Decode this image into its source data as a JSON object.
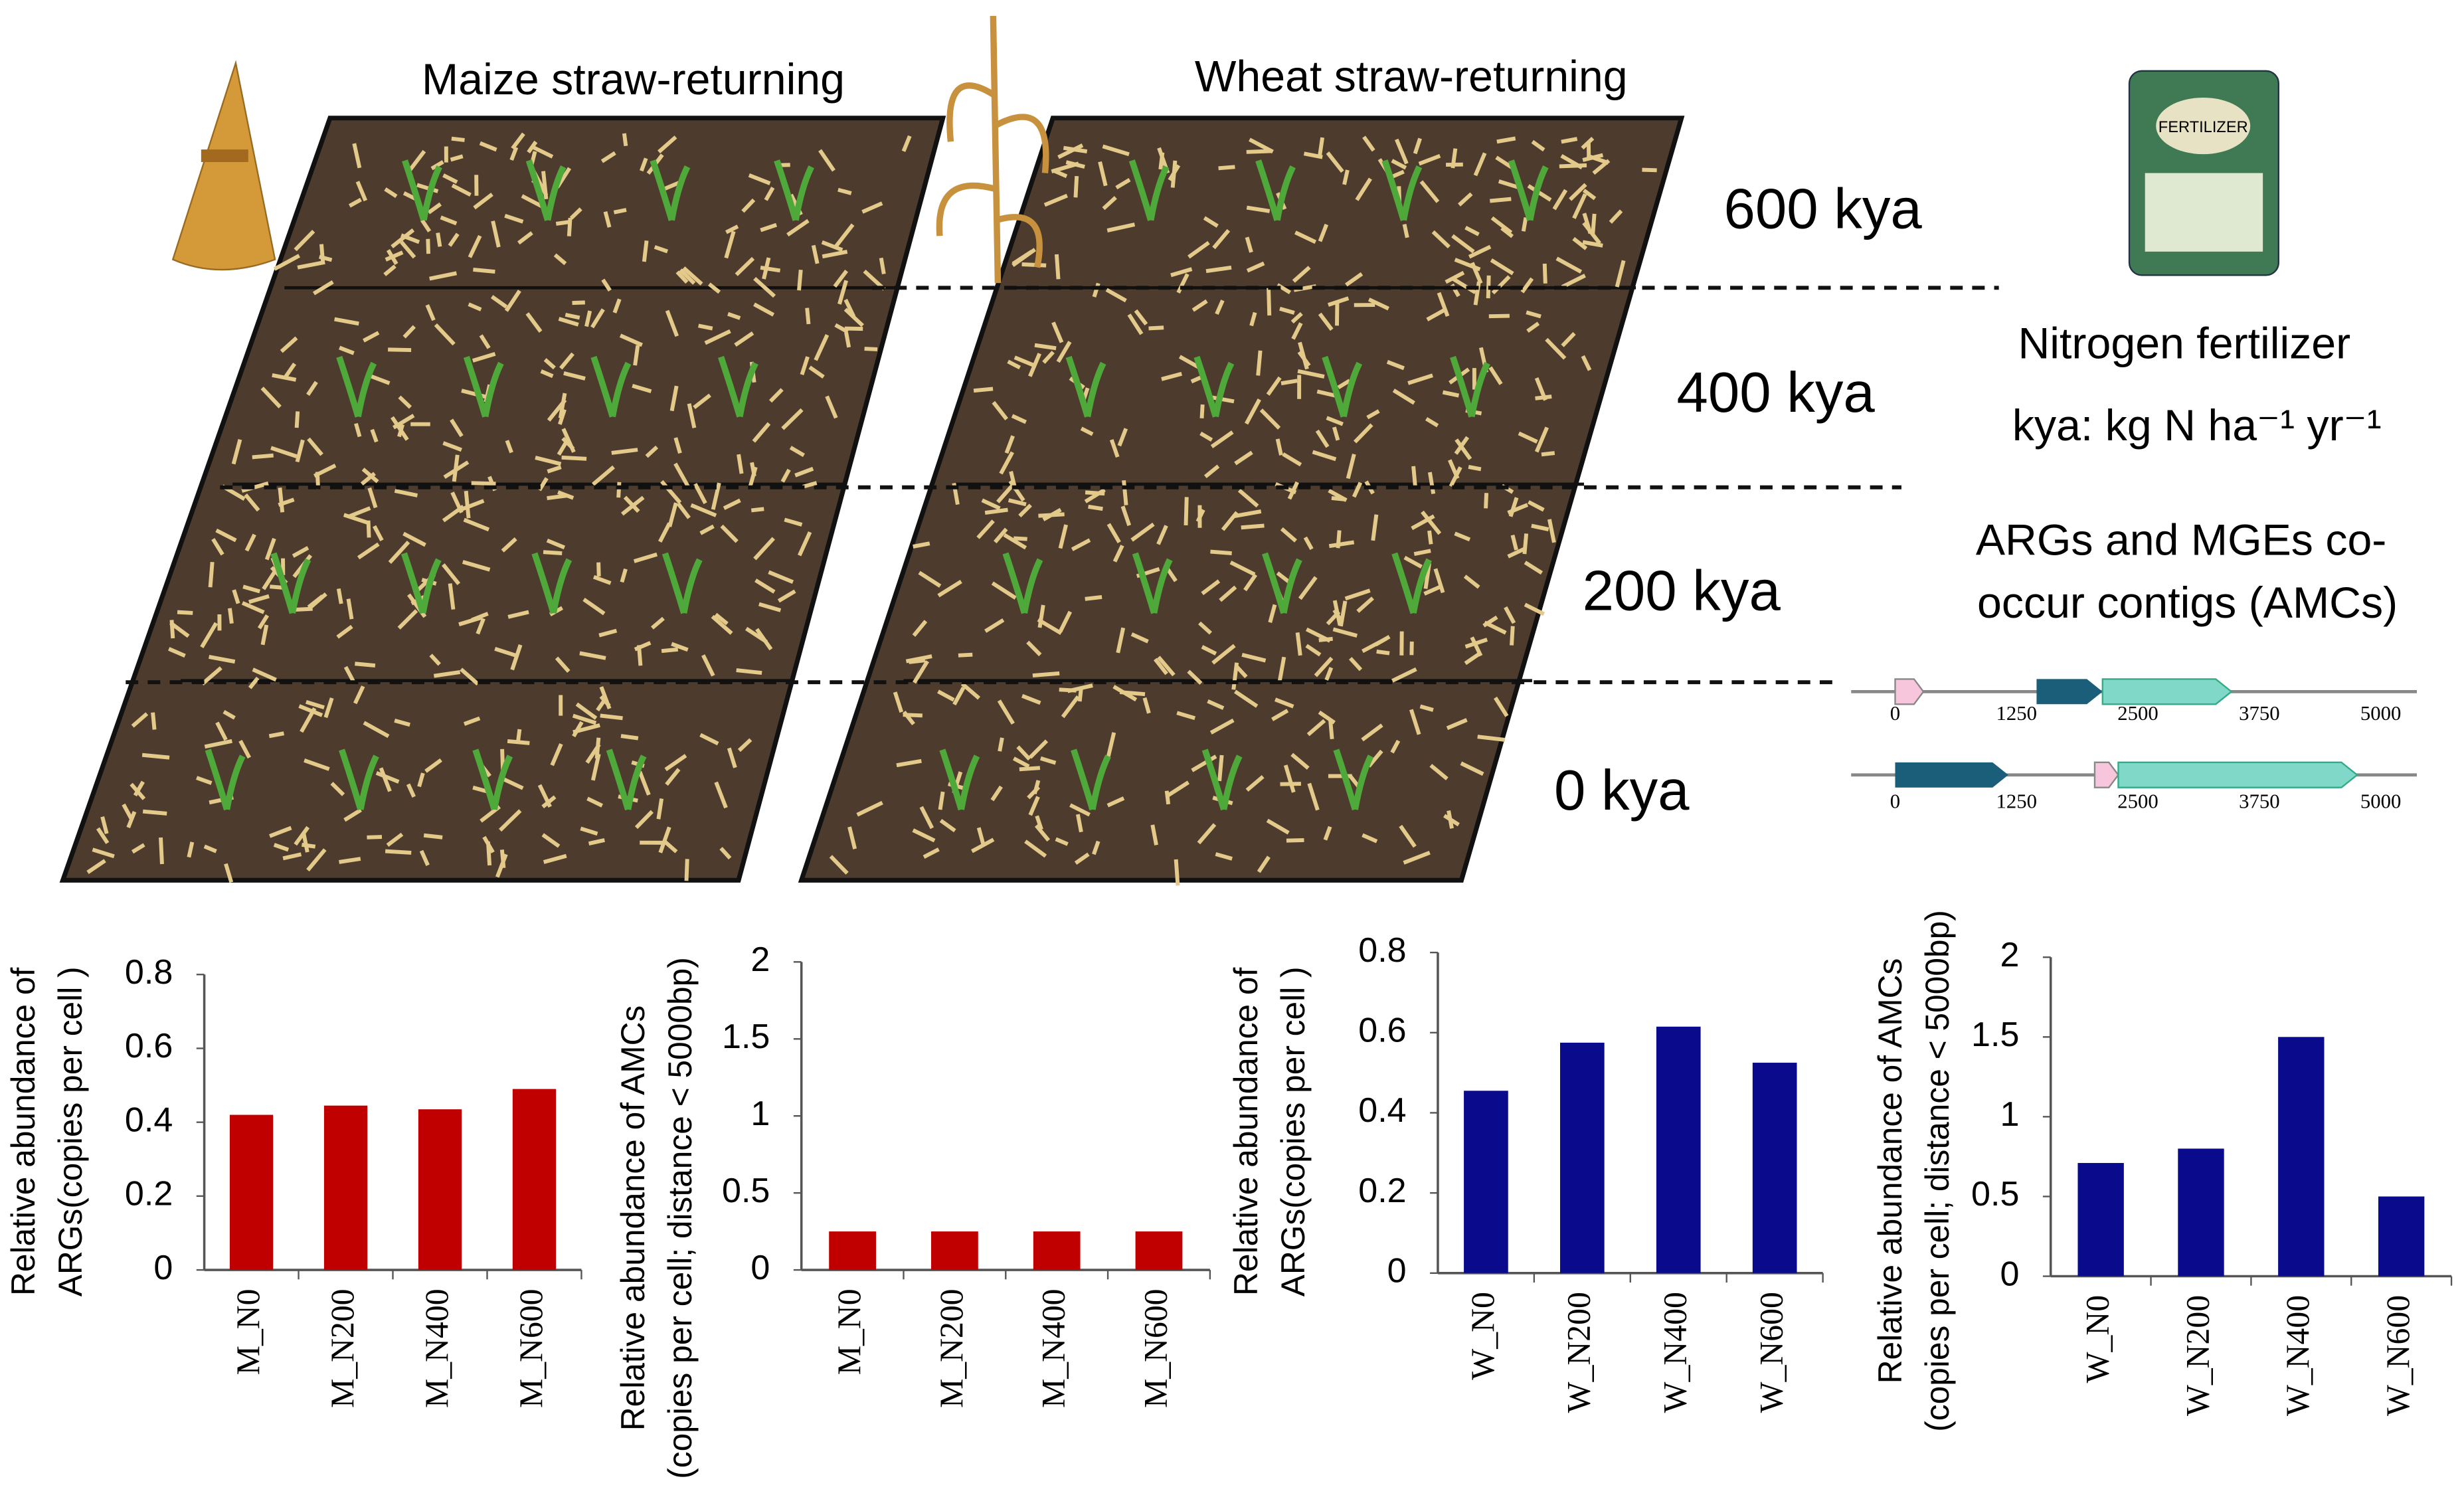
{
  "diagram": {
    "maize_title": "Maize straw-returning",
    "wheat_title": "Wheat straw-returning",
    "levels": [
      "600 kya",
      "400 kya",
      "200 kya",
      "0 kya"
    ],
    "fertilizer_title": "Nitrogen fertilizer",
    "fertilizer_bag": "FERTILIZER",
    "unit": "kya: kg N ha⁻¹ yr⁻¹",
    "amc_title": [
      "ARGs and MGEs co-",
      "occur contigs (AMCs)"
    ],
    "gene_ticks": [
      0,
      1250,
      2500,
      3750,
      5000
    ]
  },
  "chart_data": [
    {
      "type": "bar",
      "ylabel": [
        "Relative abundance of",
        "ARGs(copies per cell )"
      ],
      "categories": [
        "M_N0",
        "M_N200",
        "M_N400",
        "M_N600"
      ],
      "values": [
        0.42,
        0.445,
        0.435,
        0.49
      ],
      "color": "#c00000",
      "ylim": [
        0,
        0.8
      ],
      "yticks": [
        0,
        0.2,
        0.4,
        0.6,
        0.8
      ]
    },
    {
      "type": "bar",
      "ylabel": [
        "Relative abundance of AMCs",
        "(copies per cell; distance < 5000bp)"
      ],
      "categories": [
        "M_N0",
        "M_N200",
        "M_N400",
        "M_N600"
      ],
      "values": [
        0.25,
        0.25,
        0.25,
        0.25
      ],
      "color": "#c00000",
      "ylim": [
        0,
        2
      ],
      "yticks": [
        0,
        0.5,
        1,
        1.5,
        2
      ]
    },
    {
      "type": "bar",
      "ylabel": [
        "Relative abundance of",
        "ARGs(copies per cell )"
      ],
      "categories": [
        "W_N0",
        "W_N200",
        "W_N400",
        "W_N600"
      ],
      "values": [
        0.455,
        0.575,
        0.615,
        0.525
      ],
      "color": "#0a0a8c",
      "ylim": [
        0,
        0.8
      ],
      "yticks": [
        0,
        0.2,
        0.4,
        0.6,
        0.8
      ]
    },
    {
      "type": "bar",
      "ylabel": [
        "Relative abundance of AMCs",
        "(copies per cell; distance < 5000bp)"
      ],
      "categories": [
        "W_N0",
        "W_N200",
        "W_N400",
        "W_N600"
      ],
      "values": [
        0.71,
        0.8,
        1.5,
        0.5
      ],
      "color": "#0a0a8c",
      "ylim": [
        0,
        2
      ],
      "yticks": [
        0,
        0.5,
        1,
        1.5,
        2
      ]
    }
  ]
}
